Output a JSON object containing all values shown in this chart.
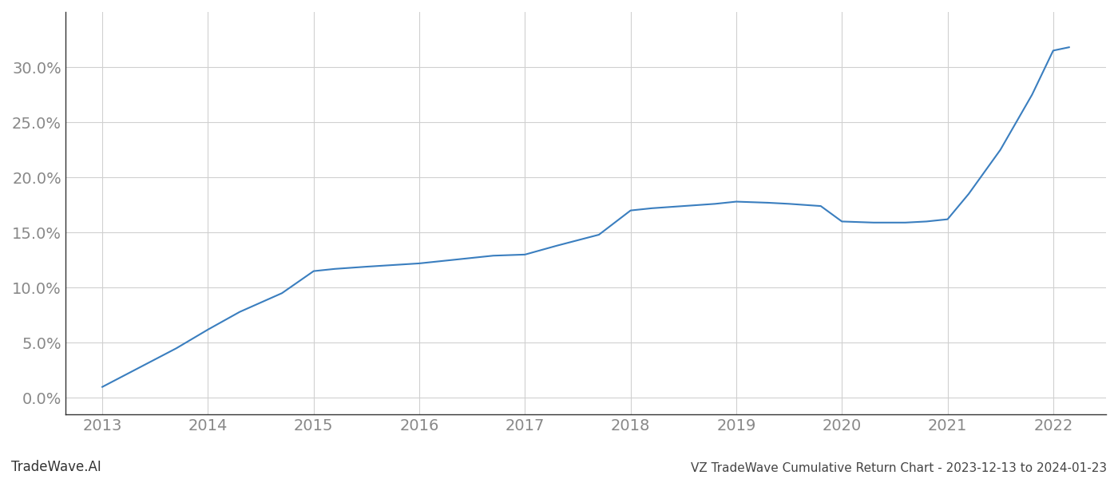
{
  "title": "VZ TradeWave Cumulative Return Chart - 2023-12-13 to 2024-01-23",
  "watermark": "TradeWave.AI",
  "x_years": [
    2013,
    2014,
    2015,
    2016,
    2017,
    2018,
    2019,
    2020,
    2021,
    2022
  ],
  "x_values": [
    2013.0,
    2013.3,
    2013.7,
    2014.0,
    2014.3,
    2014.7,
    2015.0,
    2015.2,
    2015.5,
    2016.0,
    2016.3,
    2016.7,
    2017.0,
    2017.3,
    2017.7,
    2018.0,
    2018.2,
    2018.5,
    2018.8,
    2019.0,
    2019.3,
    2019.5,
    2019.8,
    2020.0,
    2020.3,
    2020.6,
    2020.8,
    2021.0,
    2021.2,
    2021.5,
    2021.8,
    2022.0,
    2022.15
  ],
  "y_values": [
    1.0,
    2.5,
    4.5,
    6.2,
    7.8,
    9.5,
    11.5,
    11.7,
    11.9,
    12.2,
    12.5,
    12.9,
    13.0,
    13.8,
    14.8,
    17.0,
    17.2,
    17.4,
    17.6,
    17.8,
    17.7,
    17.6,
    17.4,
    16.0,
    15.9,
    15.9,
    16.0,
    16.2,
    18.5,
    22.5,
    27.5,
    31.5,
    31.8
  ],
  "line_color": "#3a7ebf",
  "line_width": 1.5,
  "ylim": [
    -1.5,
    35
  ],
  "yticks": [
    0.0,
    5.0,
    10.0,
    15.0,
    20.0,
    25.0,
    30.0
  ],
  "xlim": [
    2012.65,
    2022.5
  ],
  "background_color": "#ffffff",
  "grid_color": "#d0d0d0",
  "tick_color": "#888888",
  "title_color": "#444444",
  "watermark_color": "#333333",
  "title_fontsize": 11,
  "watermark_fontsize": 12,
  "tick_fontsize": 14,
  "left_spine_color": "#333333"
}
